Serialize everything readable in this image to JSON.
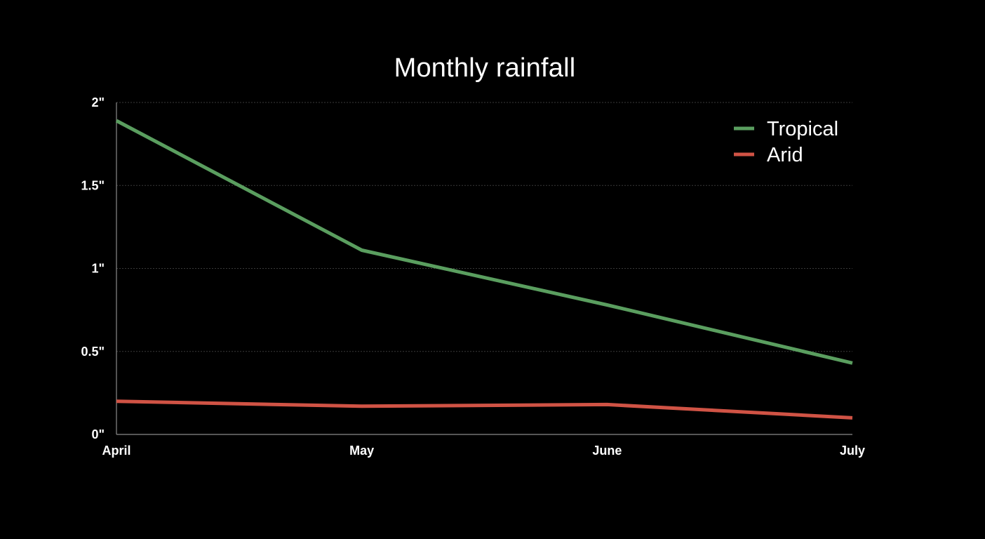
{
  "chart_data": {
    "type": "line",
    "title": "Monthly rainfall",
    "xlabel": "",
    "ylabel": "",
    "categories": [
      "April",
      "May",
      "June",
      "July"
    ],
    "series": [
      {
        "name": "Tropical",
        "color": "#5a9e5f",
        "values": [
          1.89,
          1.11,
          0.78,
          0.43
        ]
      },
      {
        "name": "Arid",
        "color": "#d05345",
        "values": [
          0.2,
          0.17,
          0.18,
          0.1
        ]
      }
    ],
    "ylim": [
      0,
      2
    ],
    "yticks": [
      0,
      0.5,
      1,
      1.5,
      2
    ],
    "ytick_labels": [
      "0\"",
      "0.5\"",
      "1\"",
      "1.5\"",
      "2\""
    ],
    "grid": true,
    "legend_position": "top-right"
  }
}
